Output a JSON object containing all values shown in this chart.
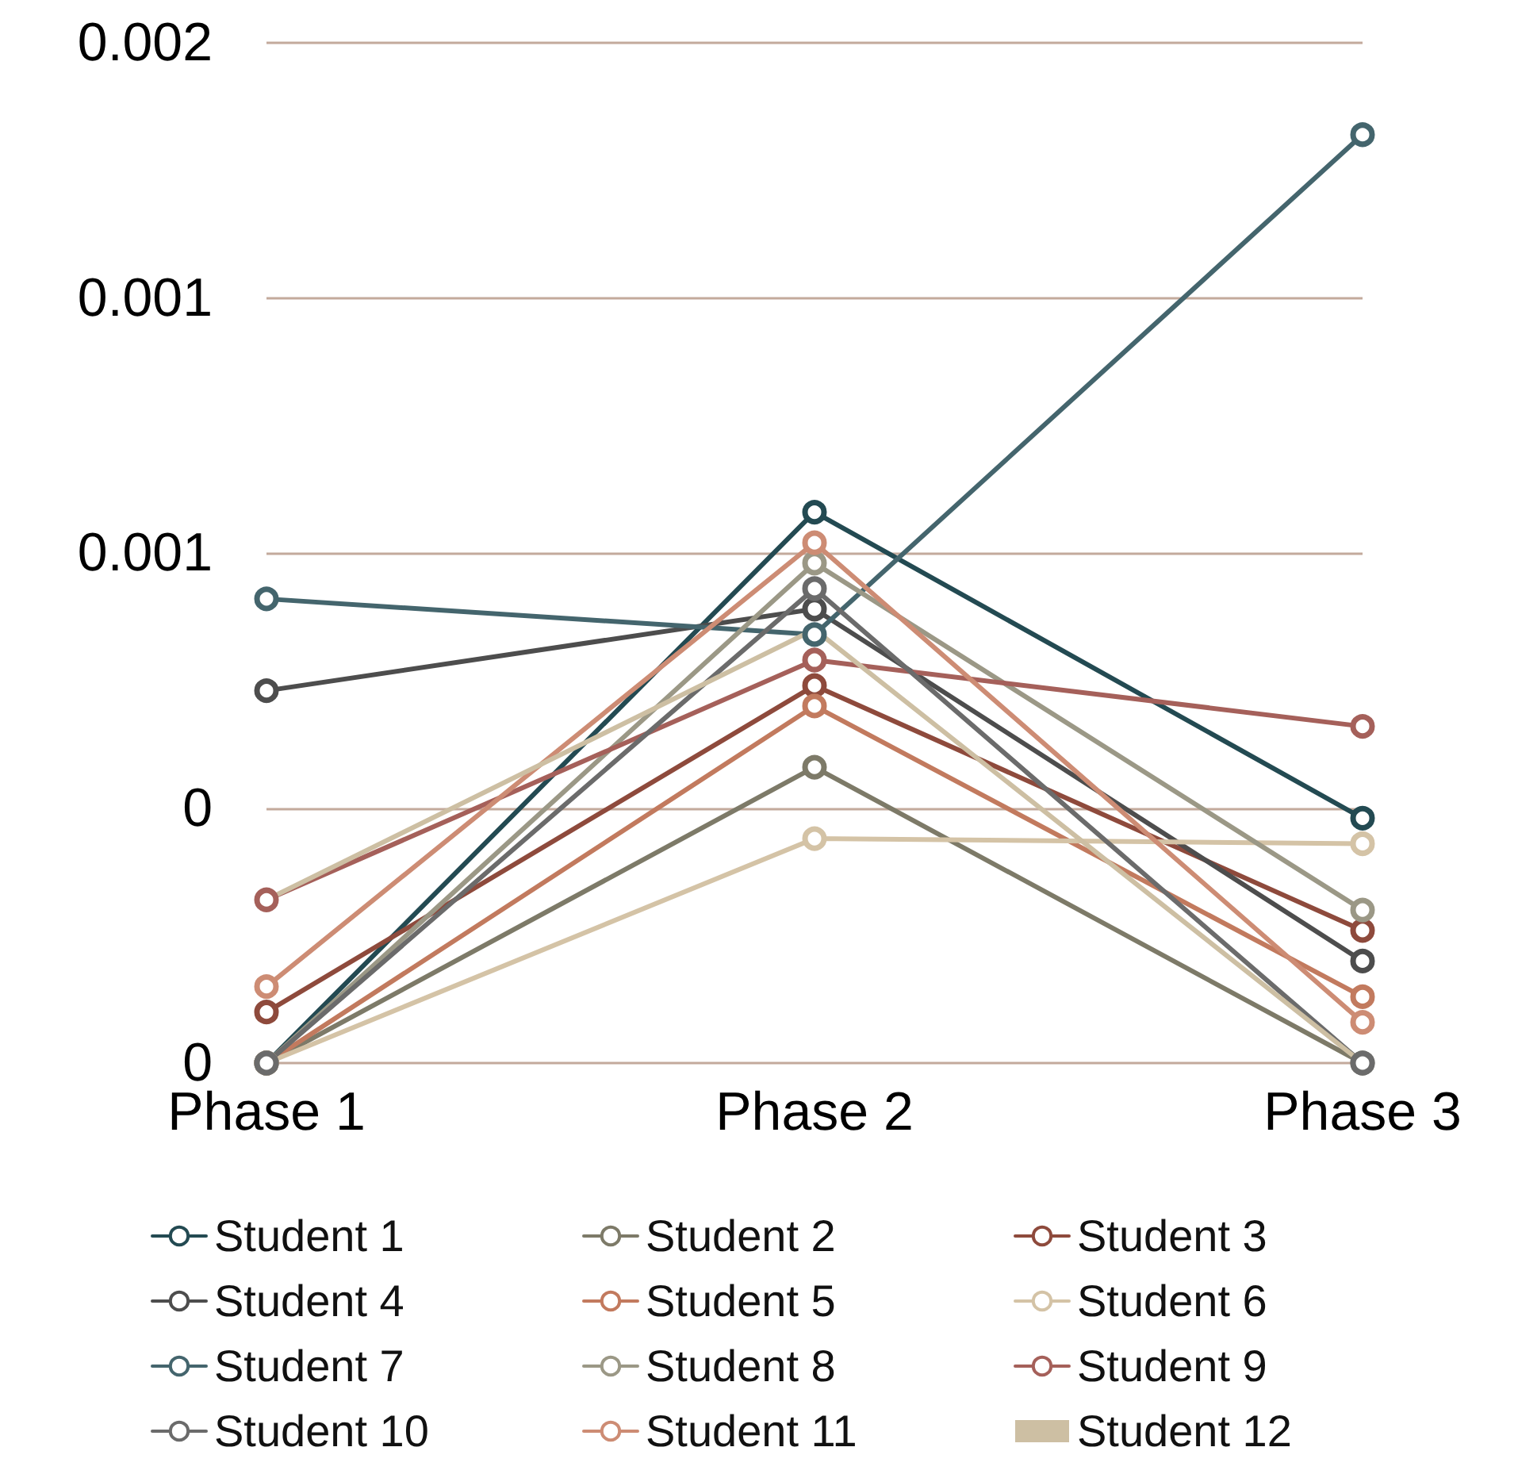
{
  "chart_data": {
    "type": "line",
    "categories": [
      "Phase 1",
      "Phase 2",
      "Phase 3"
    ],
    "ylim": [
      0,
      0.002
    ],
    "yticks": [
      {
        "value": 0,
        "label": "0"
      },
      {
        "value": 0.0005,
        "label": "0"
      },
      {
        "value": 0.001,
        "label": "0.001"
      },
      {
        "value": 0.0015,
        "label": "0.001"
      },
      {
        "value": 0.002,
        "label": "0.002"
      }
    ],
    "grid": "y",
    "legend": "bottom",
    "marker": "circle",
    "series": [
      {
        "name": "Student 1",
        "color": "#234a52",
        "values": [
          0,
          0.00108,
          0.00048
        ]
      },
      {
        "name": "Student 2",
        "color": "#7d7a68",
        "values": [
          0,
          0.00058,
          0
        ]
      },
      {
        "name": "Student 3",
        "color": "#8e4a3c",
        "values": [
          0.0001,
          0.00074,
          0.00026
        ]
      },
      {
        "name": "Student 4",
        "color": "#4d4d4d",
        "values": [
          0.00073,
          0.00089,
          0.0002
        ]
      },
      {
        "name": "Student 5",
        "color": "#c27a5e",
        "values": [
          0,
          0.0007,
          0.00013
        ]
      },
      {
        "name": "Student 6",
        "color": "#d4c3a6",
        "values": [
          0,
          0.00044,
          0.00043
        ]
      },
      {
        "name": "Student 7",
        "color": "#44656d",
        "values": [
          0.00091,
          0.00084,
          0.00182
        ]
      },
      {
        "name": "Student 8",
        "color": "#9b9886",
        "values": [
          0,
          0.00098,
          0.0003
        ]
      },
      {
        "name": "Student 9",
        "color": "#a5605a",
        "values": [
          0.00032,
          0.00079,
          0.00066
        ]
      },
      {
        "name": "Student 10",
        "color": "#6b6b6b",
        "values": [
          0,
          0.00093,
          0
        ]
      },
      {
        "name": "Student 11",
        "color": "#cd8c74",
        "values": [
          0.00015,
          0.00102,
          8e-05
        ]
      },
      {
        "name": "Student 12",
        "color": "#cdbfa3",
        "marker": "none",
        "values": [
          0.00032,
          0.00085,
          0
        ]
      }
    ]
  }
}
